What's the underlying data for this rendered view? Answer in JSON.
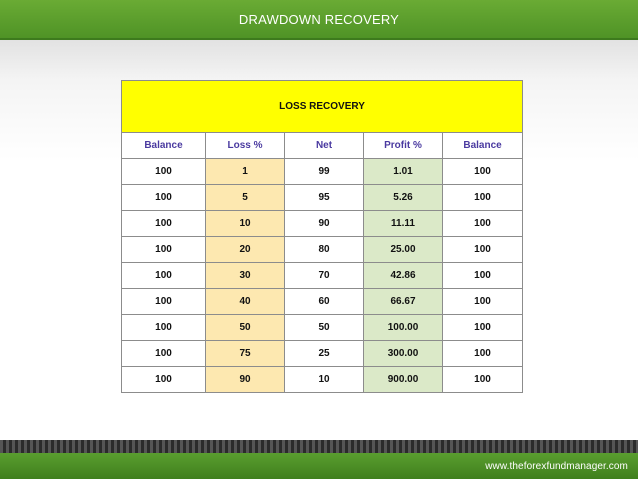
{
  "header": {
    "title": "DRAWDOWN RECOVERY"
  },
  "table": {
    "title": "LOSS RECOVERY",
    "columns": [
      "Balance",
      "Loss %",
      "Net",
      "Profit %",
      "Balance"
    ],
    "rows": [
      [
        "100",
        "1",
        "99",
        "1.01",
        "100"
      ],
      [
        "100",
        "5",
        "95",
        "5.26",
        "100"
      ],
      [
        "100",
        "10",
        "90",
        "11.11",
        "100"
      ],
      [
        "100",
        "20",
        "80",
        "25.00",
        "100"
      ],
      [
        "100",
        "30",
        "70",
        "42.86",
        "100"
      ],
      [
        "100",
        "40",
        "60",
        "66.67",
        "100"
      ],
      [
        "100",
        "50",
        "50",
        "100.00",
        "100"
      ],
      [
        "100",
        "75",
        "25",
        "300.00",
        "100"
      ],
      [
        "100",
        "90",
        "10",
        "900.00",
        "100"
      ]
    ]
  },
  "footer": {
    "url": "www.theforexfundmanager.com"
  },
  "colors": {
    "header_green": "#5a9e2f",
    "table_title_bg": "#ffff00",
    "loss_cell_bg": "#fde8b0",
    "profit_cell_bg": "#dbe9c8",
    "column_header_text": "#4a3aa0"
  }
}
